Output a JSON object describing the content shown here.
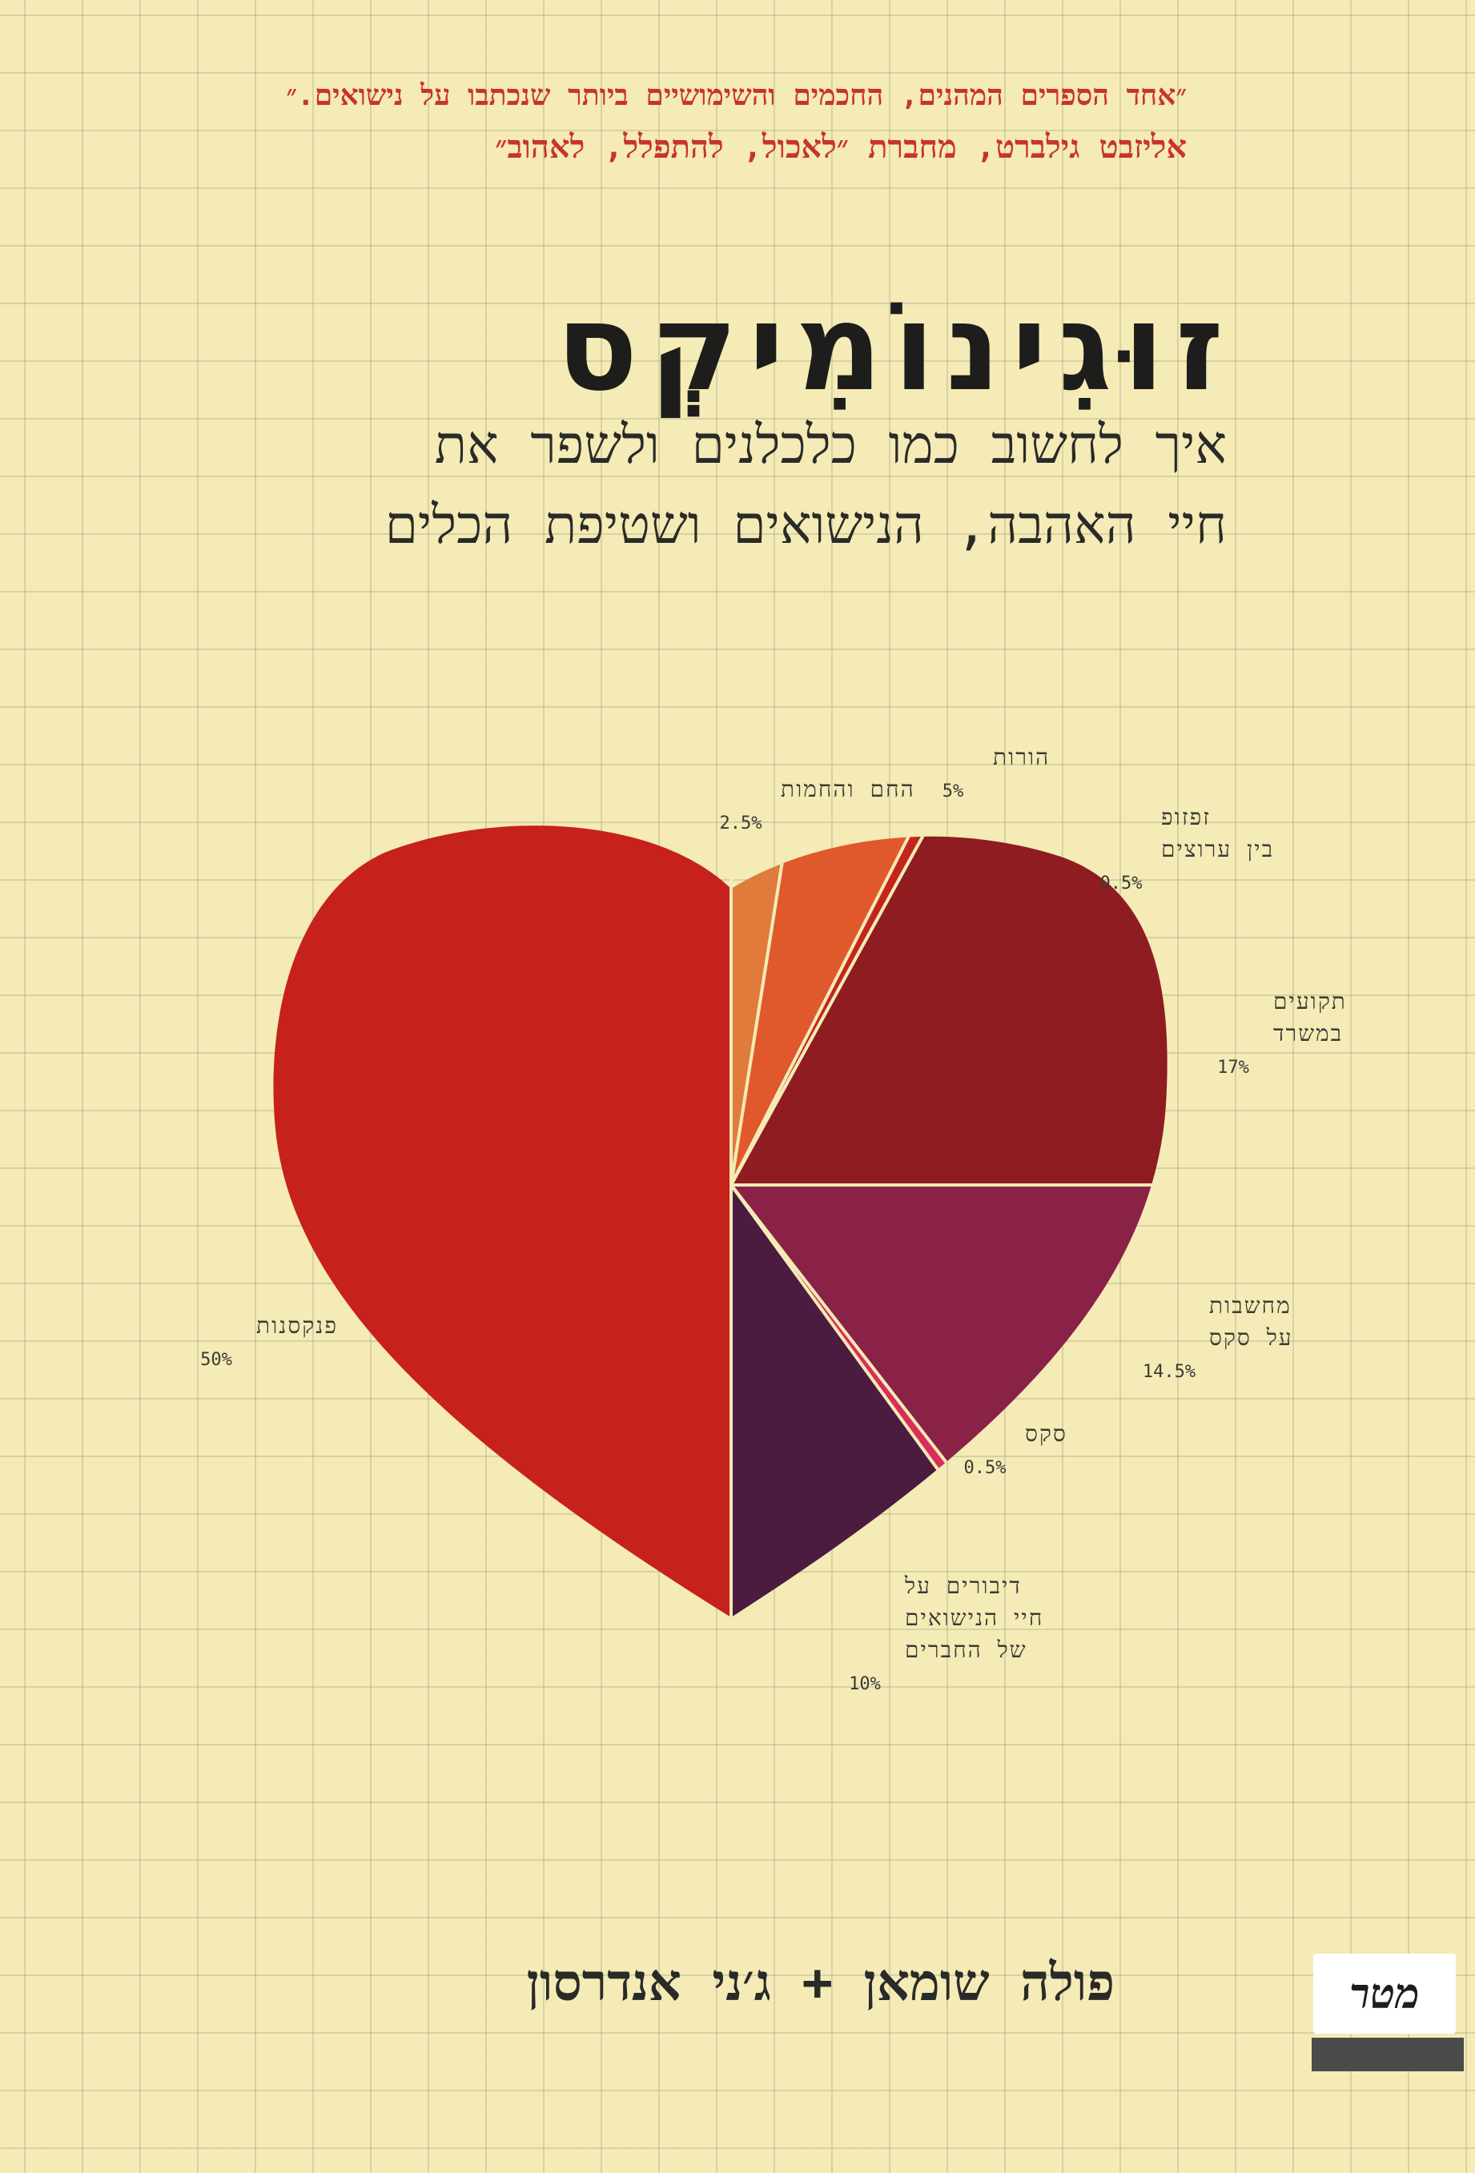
{
  "cover": {
    "quote_line1": "״אחד הספרים המהנים, החכמים והשימושיים ביותר שנכתבו על נישואים.״",
    "quote_line2": "אליזבט גילברט, מחברת ״לאכול, להתפלל, לאהוב״",
    "title": "זוּגִינוֹמִיקְס",
    "subtitle_line1": "איך לחשוב כמו כלכלנים ולשפר את",
    "subtitle_line2": "חיי האהבה, הנישואים ושטיפת הכלים",
    "authors": "פולה שומאן + ג׳ני אנדרסון",
    "publisher_logo_text": "מטר",
    "colors": {
      "background": "#f4ebb6",
      "quote": "#c9342a",
      "title": "#1d1d1b"
    }
  },
  "chart_data": {
    "type": "pie",
    "shape": "heart",
    "slices": [
      {
        "name_line1": "החם והחמות",
        "name_line2": "",
        "name_line3": "",
        "value": 2.5,
        "label": "2.5%",
        "color": "#e07b3b"
      },
      {
        "name_line1": "הורות",
        "name_line2": "",
        "name_line3": "",
        "value": 5,
        "label": "5%",
        "color": "#e0592c"
      },
      {
        "name_line1": "זפזופ",
        "name_line2": "בין ערוצים",
        "name_line3": "",
        "value": 0.5,
        "label": "0.5%",
        "color": "#c4251d"
      },
      {
        "name_line1": "תקועים",
        "name_line2": "במשרד",
        "name_line3": "",
        "value": 17,
        "label": "17%",
        "color": "#8f1c20"
      },
      {
        "name_line1": "מחשבות",
        "name_line2": "על סקס",
        "name_line3": "",
        "value": 14.5,
        "label": "14.5%",
        "color": "#8a2146"
      },
      {
        "name_line1": "סקס",
        "name_line2": "",
        "name_line3": "",
        "value": 0.5,
        "label": "0.5%",
        "color": "#d92d5d"
      },
      {
        "name_line1": "דיבורים על",
        "name_line2": "חיי הנישואים",
        "name_line3": "של החברים",
        "value": 10,
        "label": "10%",
        "color": "#4b1b40"
      },
      {
        "name_line1": "פנקסנות",
        "name_line2": "",
        "name_line3": "",
        "value": 50,
        "label": "50%",
        "color": "#c7211c"
      }
    ]
  }
}
